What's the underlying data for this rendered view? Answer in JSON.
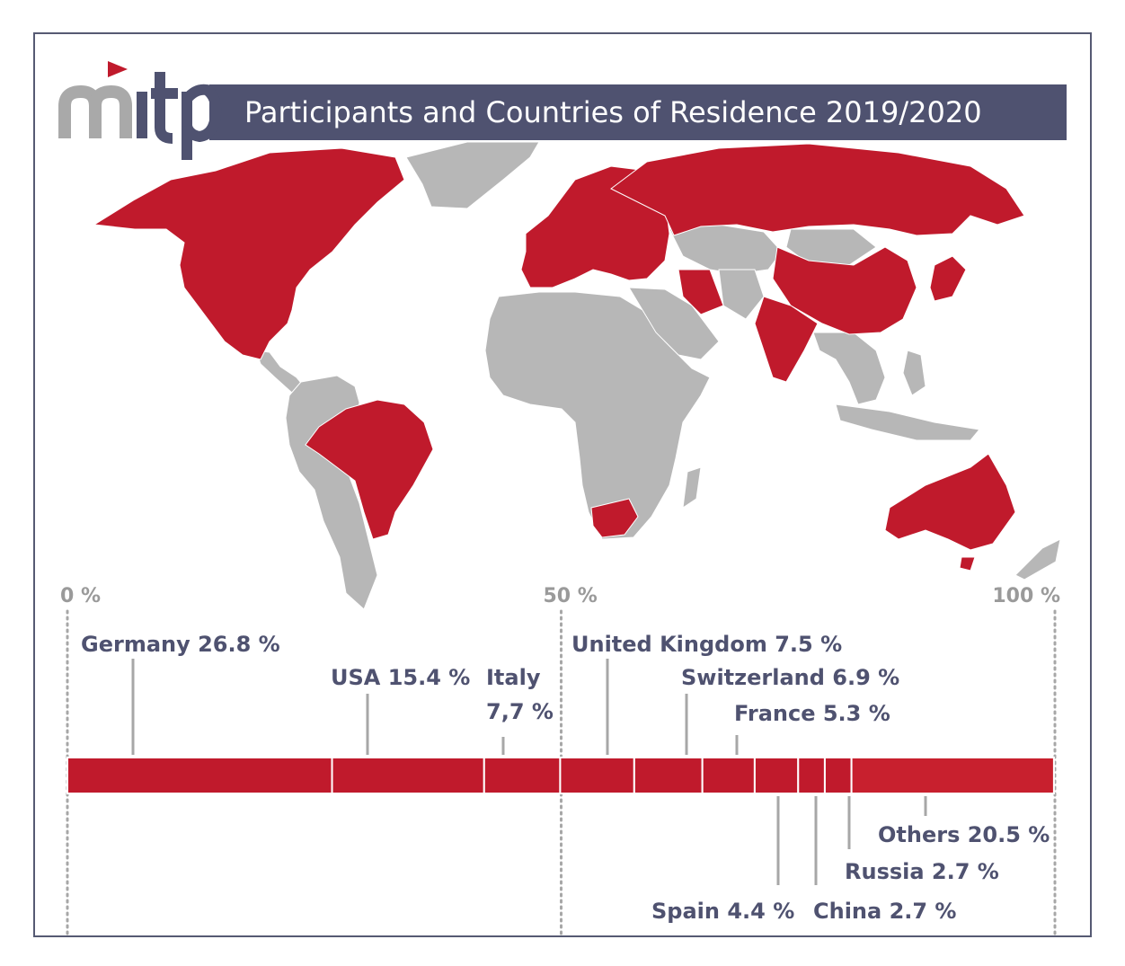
{
  "header": {
    "logo_text": "mitp",
    "title": "Participants and Countries of Residence 2019/2020"
  },
  "colors": {
    "highlight": "#c01a2c",
    "land": "#b7b7b7",
    "title_bar": "#4f5270",
    "label_text": "#4f5270",
    "axis_text": "#9a9a9a"
  },
  "map": {
    "highlighted_countries": [
      "Germany",
      "USA",
      "Italy",
      "United Kingdom",
      "Switzerland",
      "France",
      "Spain",
      "China",
      "Russia",
      "Canada",
      "Mexico",
      "Brazil",
      "Australia",
      "South Africa",
      "India",
      "Iran",
      "Japan",
      "Poland",
      "Sweden",
      "Norway",
      "Finland",
      "Ukraine",
      "Romania",
      "Greece",
      "Portugal",
      "Ireland",
      "Netherlands",
      "Belgium",
      "Austria",
      "Czech Republic",
      "Hungary",
      "Turkey"
    ]
  },
  "chart_data": {
    "type": "bar",
    "orientation": "horizontal-stacked",
    "axis_ticks": [
      "0 %",
      "50 %",
      "100 %"
    ],
    "xlim": [
      0,
      100
    ],
    "segments": [
      {
        "label": "Germany 26.8 %",
        "value": 26.8,
        "label_lines": [
          "Germany 26.8 %"
        ]
      },
      {
        "label": "USA 15.4 %",
        "value": 15.4,
        "label_lines": [
          "USA 15.4 %"
        ]
      },
      {
        "label": "Italy 7,7 %",
        "value": 7.7,
        "label_lines": [
          "Italy",
          "7,7 %"
        ]
      },
      {
        "label": "United Kingdom 7.5 %",
        "value": 7.5,
        "label_lines": [
          "United Kingdom 7.5 %"
        ]
      },
      {
        "label": "Switzerland 6.9 %",
        "value": 6.9,
        "label_lines": [
          "Switzerland 6.9 %"
        ]
      },
      {
        "label": "France 5.3 %",
        "value": 5.3,
        "label_lines": [
          "France 5.3 %"
        ]
      },
      {
        "label": "Spain 4.4 %",
        "value": 4.4,
        "label_lines": [
          "Spain 4.4 %"
        ]
      },
      {
        "label": "China 2.7 %",
        "value": 2.7,
        "label_lines": [
          "China 2.7 %"
        ]
      },
      {
        "label": "Russia 2.7 %",
        "value": 2.7,
        "label_lines": [
          "Russia 2.7 %"
        ]
      },
      {
        "label": "Others 20.5 %",
        "value": 20.5,
        "label_lines": [
          "Others 20.5 %"
        ]
      }
    ]
  }
}
